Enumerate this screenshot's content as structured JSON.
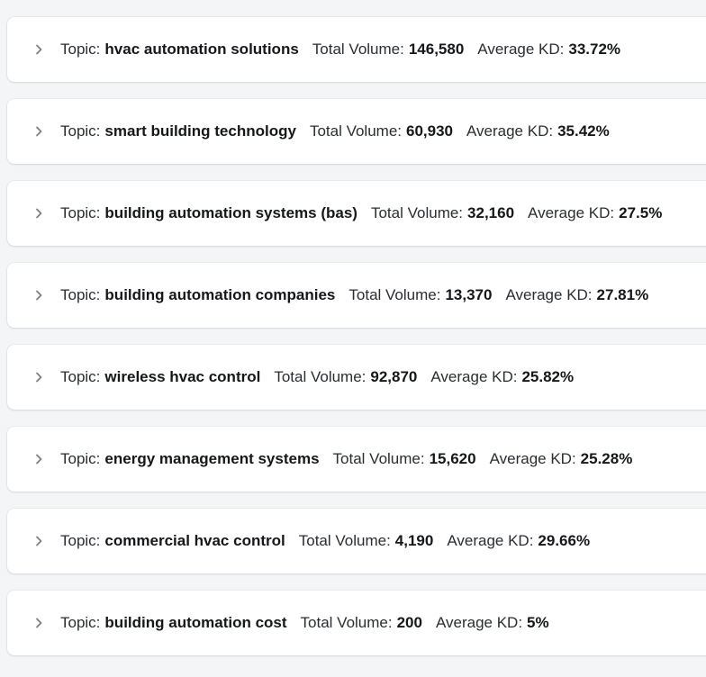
{
  "labels": {
    "topic": "Topic:",
    "total_volume": "Total Volume:",
    "average_kd": "Average KD:"
  },
  "icons": {
    "expand": "chevron-right-icon"
  },
  "topics": [
    {
      "name": "hvac automation solutions",
      "total_volume": "146,580",
      "average_kd": "33.72%"
    },
    {
      "name": "smart building technology",
      "total_volume": "60,930",
      "average_kd": "35.42%"
    },
    {
      "name": "building automation systems (bas)",
      "total_volume": "32,160",
      "average_kd": "27.5%"
    },
    {
      "name": "building automation companies",
      "total_volume": "13,370",
      "average_kd": "27.81%"
    },
    {
      "name": "wireless hvac control",
      "total_volume": "92,870",
      "average_kd": "25.82%"
    },
    {
      "name": "energy management systems",
      "total_volume": "15,620",
      "average_kd": "25.28%"
    },
    {
      "name": "commercial hvac control",
      "total_volume": "4,190",
      "average_kd": "29.66%"
    },
    {
      "name": "building automation cost",
      "total_volume": "200",
      "average_kd": "5%"
    }
  ]
}
